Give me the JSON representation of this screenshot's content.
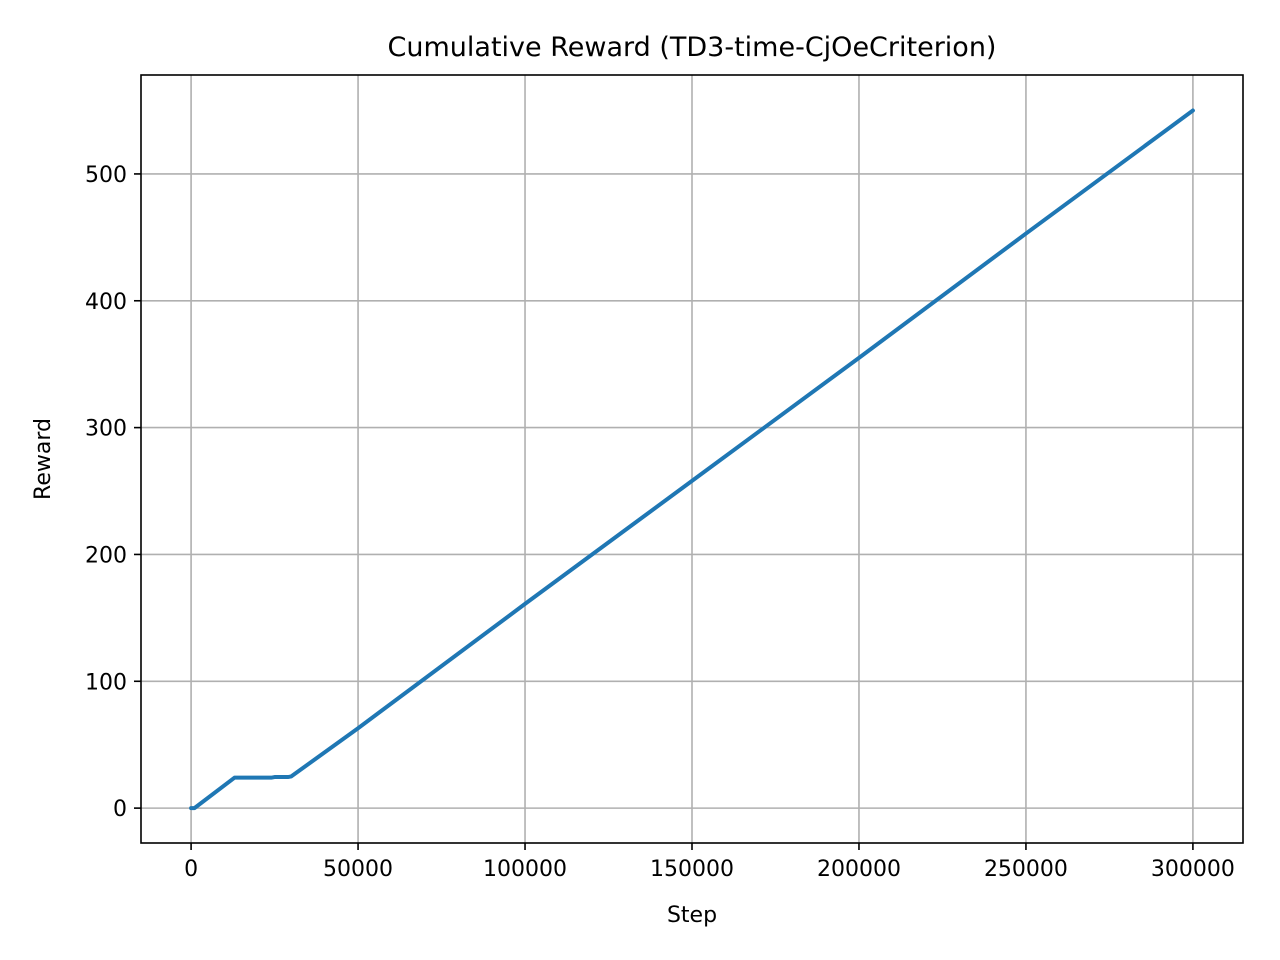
{
  "chart_data": {
    "type": "line",
    "title": "Cumulative Reward (TD3-time-CjOeCriterion)",
    "xlabel": "Step",
    "ylabel": "Reward",
    "xlim": [
      -15000,
      315000
    ],
    "ylim": [
      -27.5,
      578
    ],
    "xticks": [
      0,
      50000,
      100000,
      150000,
      200000,
      250000,
      300000
    ],
    "yticks": [
      0,
      100,
      200,
      300,
      400,
      500
    ],
    "grid": true,
    "series": [
      {
        "name": "Cumulative Reward",
        "color": "#1f77b4",
        "x": [
          0,
          1000,
          13000,
          24000,
          25000,
          29000,
          30000,
          50000,
          100000,
          150000,
          200000,
          250000,
          300000
        ],
        "y": [
          0,
          0,
          24,
          24,
          24.5,
          24.5,
          25,
          63,
          161,
          258,
          355,
          453,
          550
        ]
      }
    ]
  }
}
